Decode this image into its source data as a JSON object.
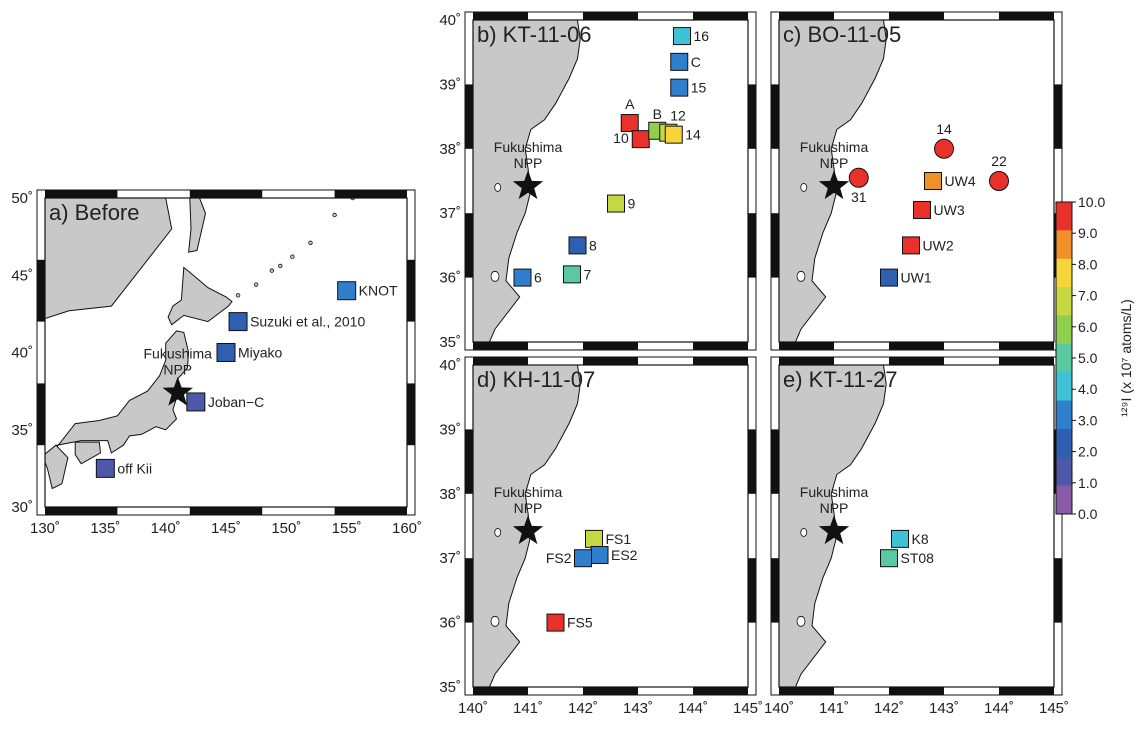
{
  "figure": {
    "colorbar": {
      "ticks": [
        "10.0",
        "9.0",
        "8.0",
        "7.0",
        "6.0",
        "5.0",
        "4.0",
        "3.0",
        "2.0",
        "1.0",
        "0.0"
      ],
      "title": "¹²⁹I (x 10⁷ atoms/L)",
      "min": 0,
      "max": 10,
      "colors": [
        "#8a5aa8",
        "#4e58a8",
        "#2f5fb0",
        "#2f7fcc",
        "#3ec2d8",
        "#5ac8a0",
        "#8fcf4e",
        "#c6d840",
        "#f5d43c",
        "#f0902a",
        "#e8312a"
      ]
    },
    "npp_label": [
      "Fukushima",
      "NPP"
    ],
    "panels": [
      {
        "id": "a",
        "label": "a) Before",
        "lon_range": [
          130,
          160
        ],
        "lat_range": [
          30,
          50
        ],
        "xticks": [
          "130˚",
          "135˚",
          "140˚",
          "145˚",
          "150˚",
          "155˚",
          "160˚"
        ],
        "yticks": [
          "50˚",
          "45˚",
          "40˚",
          "35˚",
          "30˚"
        ],
        "npp": {
          "lon": 141.0,
          "lat": 37.4
        },
        "stations": [
          {
            "name": "KNOT",
            "lon": 155.0,
            "lat": 44.0,
            "value": 2.5
          },
          {
            "name": "Suzuki et al., 2010",
            "lon": 146.0,
            "lat": 42.0,
            "value": 2.2
          },
          {
            "name": "Miyako",
            "lon": 145.0,
            "lat": 40.0,
            "value": 1.5
          },
          {
            "name": "Joban−C",
            "lon": 142.5,
            "lat": 36.8,
            "value": 1.4
          },
          {
            "name": "off Kii",
            "lon": 135.0,
            "lat": 32.5,
            "value": 0.8
          }
        ]
      },
      {
        "id": "b",
        "label": "b) KT-11-06",
        "lon_range": [
          140,
          145
        ],
        "lat_range": [
          35,
          40
        ],
        "xticks": [],
        "yticks": [
          "40˚",
          "39˚",
          "38˚",
          "37˚",
          "36˚",
          "35˚"
        ],
        "npp": {
          "lon": 141.0,
          "lat": 37.42
        },
        "stations": [
          {
            "name": "16",
            "lon": 143.8,
            "lat": 39.75,
            "value": 4.0
          },
          {
            "name": "C",
            "lon": 143.75,
            "lat": 39.35,
            "value": 2.6
          },
          {
            "name": "15",
            "lon": 143.75,
            "lat": 38.95,
            "value": 3.3
          },
          {
            "name": "A",
            "lon": 142.85,
            "lat": 38.4,
            "value": 10.0
          },
          {
            "name": "10",
            "lon": 143.05,
            "lat": 38.15,
            "value": 10.0
          },
          {
            "name": "B",
            "lon": 143.35,
            "lat": 38.28,
            "value": 6.0
          },
          {
            "name": "12",
            "lon": 143.55,
            "lat": 38.25,
            "value": 6.5
          },
          {
            "name": "14",
            "lon": 143.65,
            "lat": 38.22,
            "value": 8.0
          },
          {
            "name": "9",
            "lon": 142.6,
            "lat": 37.15,
            "value": 6.5
          },
          {
            "name": "8",
            "lon": 141.9,
            "lat": 36.5,
            "value": 1.5
          },
          {
            "name": "7",
            "lon": 141.8,
            "lat": 36.05,
            "value": 4.5
          },
          {
            "name": "6",
            "lon": 140.9,
            "lat": 36.0,
            "value": 2.5
          }
        ]
      },
      {
        "id": "c",
        "label": "c) BO-11-05",
        "lon_range": [
          140,
          145
        ],
        "lat_range": [
          35,
          40
        ],
        "xticks": [],
        "yticks": [],
        "npp": {
          "lon": 141.0,
          "lat": 37.42
        },
        "stations": [
          {
            "name": "14",
            "lon": 143.0,
            "lat": 38.0,
            "value": 10.0,
            "shape": "circle"
          },
          {
            "name": "22",
            "lon": 144.0,
            "lat": 37.5,
            "value": 10.0,
            "shape": "circle"
          },
          {
            "name": "31",
            "lon": 141.45,
            "lat": 37.55,
            "value": 10.0,
            "shape": "circle"
          },
          {
            "name": "UW4",
            "lon": 142.8,
            "lat": 37.5,
            "value": 9.0
          },
          {
            "name": "UW3",
            "lon": 142.6,
            "lat": 37.05,
            "value": 10.0
          },
          {
            "name": "UW2",
            "lon": 142.4,
            "lat": 36.5,
            "value": 10.0
          },
          {
            "name": "UW1",
            "lon": 142.0,
            "lat": 36.0,
            "value": 1.5
          }
        ]
      },
      {
        "id": "d",
        "label": "d) KH-11-07",
        "lon_range": [
          140,
          145
        ],
        "lat_range": [
          35,
          40
        ],
        "xticks": [
          "140˚",
          "141˚",
          "142˚",
          "143˚",
          "144˚",
          "145˚"
        ],
        "yticks": [
          "40˚",
          "39˚",
          "38˚",
          "37˚",
          "36˚",
          "35˚"
        ],
        "npp": {
          "lon": 141.0,
          "lat": 37.42
        },
        "stations": [
          {
            "name": "FS1",
            "lon": 142.2,
            "lat": 37.3,
            "value": 6.5
          },
          {
            "name": "ES2",
            "lon": 142.3,
            "lat": 37.05,
            "value": 2.6
          },
          {
            "name": "FS2",
            "lon": 142.0,
            "lat": 37.0,
            "value": 2.8
          },
          {
            "name": "FS5",
            "lon": 141.5,
            "lat": 36.0,
            "value": 10.0
          }
        ]
      },
      {
        "id": "e",
        "label": "e) KT-11-27",
        "lon_range": [
          140,
          145
        ],
        "lat_range": [
          35,
          40
        ],
        "xticks": [
          "140˚",
          "141˚",
          "142˚",
          "143˚",
          "144˚",
          "145˚"
        ],
        "yticks": [],
        "npp": {
          "lon": 141.0,
          "lat": 37.42
        },
        "stations": [
          {
            "name": "K8",
            "lon": 142.2,
            "lat": 37.3,
            "value": 4.0
          },
          {
            "name": "ST08",
            "lon": 142.0,
            "lat": 37.0,
            "value": 4.5
          }
        ]
      }
    ]
  }
}
